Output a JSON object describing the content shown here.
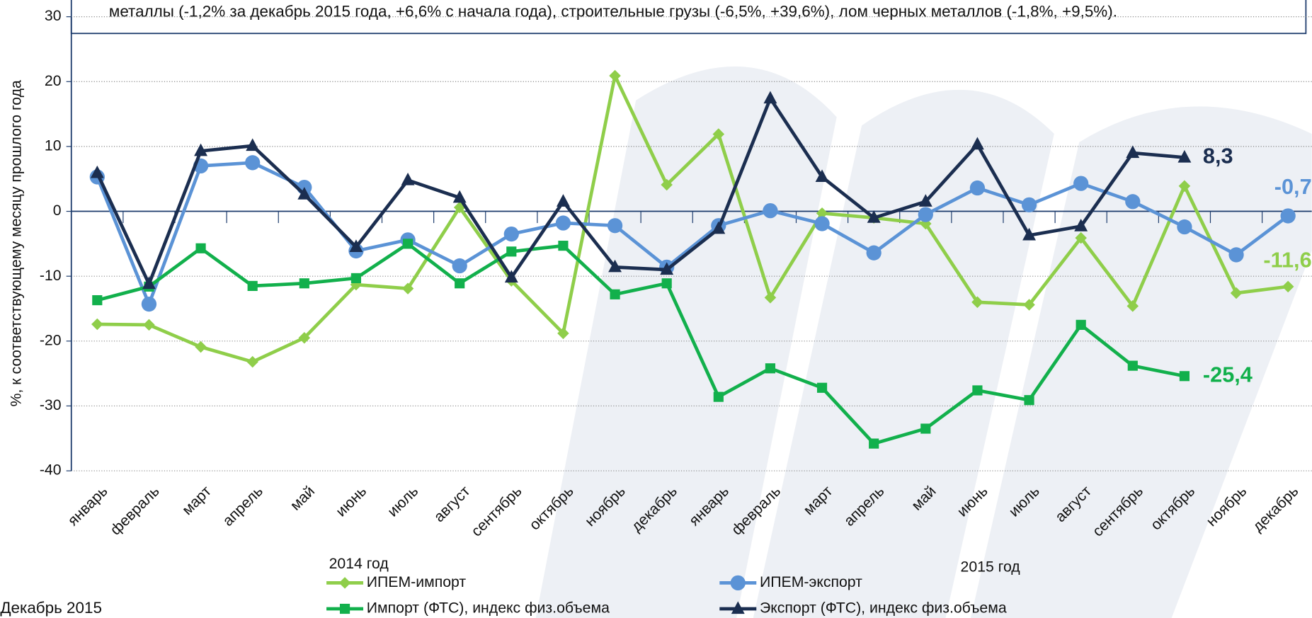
{
  "chart_data": {
    "type": "line",
    "note": "металлы (-1,2% за декабрь 2015 года, +6,6% с начала года), строительные грузы (-6,5%, +39,6%), лом черных металлов (-1,8%, +9,5%).",
    "y_label": "%, к соответствующему месяцу прошлого года",
    "footer": "Декабрь 2015",
    "period_labels": [
      "2014 год",
      "2015 год"
    ],
    "categories": [
      "январь",
      "февраль",
      "март",
      "апрель",
      "май",
      "июнь",
      "июль",
      "август",
      "сентябрь",
      "октябрь",
      "ноябрь",
      "декабрь",
      "январь",
      "февраль",
      "март",
      "апрель",
      "май",
      "июнь",
      "июль",
      "август",
      "сентябрь",
      "октябрь",
      "ноябрь",
      "декабрь"
    ],
    "ylim": [
      -40,
      30
    ],
    "yticks": [
      -40,
      -30,
      -20,
      -10,
      0,
      10,
      20,
      30
    ],
    "grid": true,
    "series": [
      {
        "name": "ИПЕМ-импорт",
        "color": "#8fce4a",
        "marker": "diamond",
        "values": [
          -17.4,
          -17.5,
          -20.9,
          -23.2,
          -19.5,
          -11.3,
          -11.9,
          0.6,
          -10.7,
          -18.8,
          20.9,
          4.1,
          11.9,
          -13.3,
          -0.3,
          -1.0,
          -1.9,
          -14.0,
          -14.4,
          -4.1,
          -14.6,
          3.9,
          -12.6,
          -11.6
        ],
        "value_labels": [
          null,
          null,
          null,
          null,
          null,
          null,
          null,
          null,
          null,
          null,
          null,
          null,
          null,
          null,
          null,
          null,
          null,
          null,
          null,
          null,
          null,
          null,
          null,
          "-11,6"
        ]
      },
      {
        "name": "ИПЕМ-экспорт",
        "color": "#5b93d6",
        "marker": "circle",
        "values": [
          5.3,
          -14.3,
          7.0,
          7.5,
          3.7,
          -6.1,
          -4.4,
          -8.4,
          -3.5,
          -1.8,
          -2.2,
          -8.6,
          -2.2,
          0.1,
          -1.9,
          -6.4,
          -0.5,
          3.6,
          1.0,
          4.3,
          1.5,
          -2.4,
          -6.7,
          -0.7
        ],
        "value_labels": [
          null,
          null,
          null,
          null,
          null,
          null,
          null,
          null,
          null,
          null,
          null,
          null,
          null,
          null,
          null,
          null,
          null,
          null,
          null,
          null,
          null,
          null,
          null,
          "-0,7"
        ]
      },
      {
        "name": "Импорт (ФТС), индекс физ.объема",
        "color": "#12b04c",
        "marker": "square",
        "values": [
          -13.7,
          -11.6,
          -5.7,
          -11.5,
          -11.1,
          -10.3,
          -5.0,
          -11.1,
          -6.2,
          -5.3,
          -12.8,
          -11.1,
          -28.6,
          -24.2,
          -27.2,
          -35.8,
          -33.5,
          -27.6,
          -29.1,
          -17.5,
          -23.8,
          -25.4,
          null,
          null
        ],
        "value_labels": [
          null,
          null,
          null,
          null,
          null,
          null,
          null,
          null,
          null,
          null,
          null,
          null,
          null,
          null,
          null,
          null,
          null,
          null,
          null,
          null,
          null,
          "-25,4",
          null,
          null
        ]
      },
      {
        "name": "Экспорт (ФТС), индекс физ.объема",
        "color": "#1b2e50",
        "marker": "triangle",
        "values": [
          5.9,
          -11.2,
          9.3,
          10.1,
          2.6,
          -5.5,
          4.8,
          2.1,
          -10.2,
          1.5,
          -8.6,
          -9.0,
          -2.7,
          17.4,
          5.3,
          -1.0,
          1.5,
          10.3,
          -3.7,
          -2.3,
          9.0,
          8.3,
          null,
          null
        ],
        "value_labels": [
          null,
          null,
          null,
          null,
          null,
          null,
          null,
          null,
          null,
          null,
          null,
          null,
          null,
          null,
          null,
          null,
          null,
          null,
          null,
          null,
          null,
          "8,3",
          null,
          null
        ]
      }
    ]
  }
}
